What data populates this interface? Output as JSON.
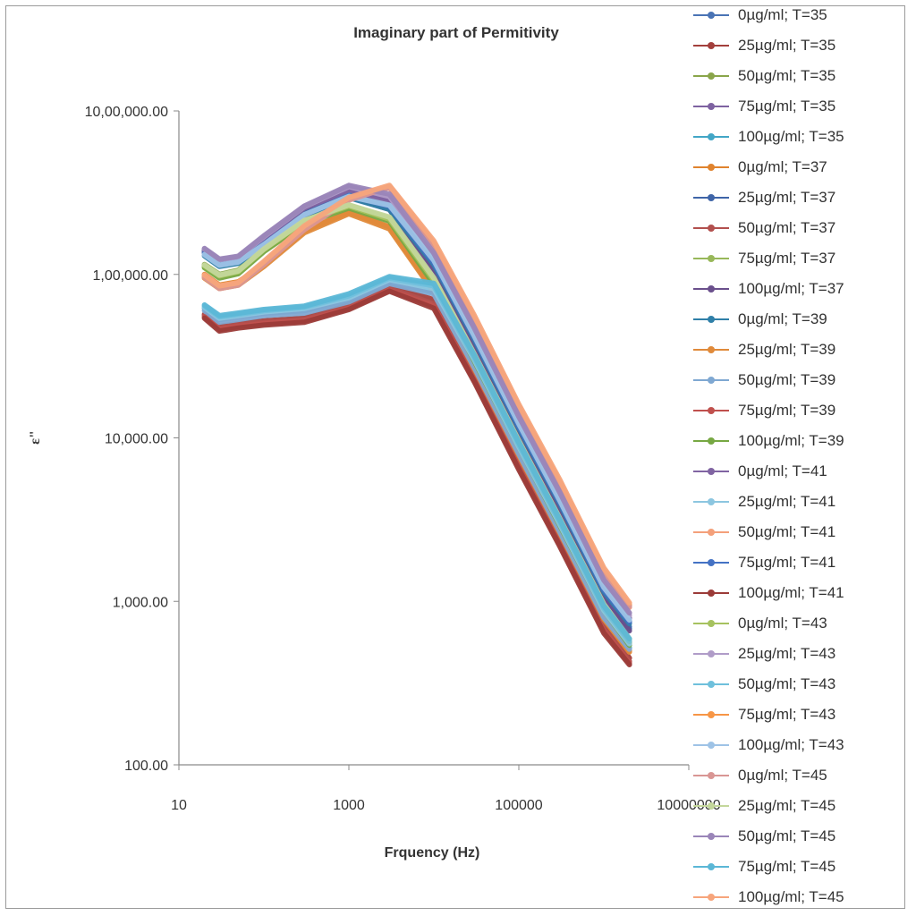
{
  "chart_data": {
    "type": "line",
    "title": "Imaginary part of Permitivity",
    "xlabel": "Frquency (Hz)",
    "ylabel": "ε\"",
    "x_scale": "log",
    "y_scale": "log",
    "xlim": [
      10,
      10000000
    ],
    "ylim": [
      100,
      1000000
    ],
    "x_ticks": [
      "10",
      "1000",
      "100000",
      "10000000"
    ],
    "y_ticks": [
      "100.00",
      "1,000.00",
      "10,000.00",
      "1,00,000.00",
      "10,00,000.00"
    ],
    "grid": false,
    "legend_position": "right",
    "x": [
      20,
      30,
      50,
      100,
      300,
      1000,
      3000,
      10000,
      30000,
      100000,
      300000,
      1000000,
      2000000
    ],
    "series": [
      {
        "name": "0µg/ml; T=35",
        "color": "#4a74b5",
        "values": [
          140000,
          120000,
          125000,
          160000,
          240000,
          310000,
          260000,
          110000,
          37000,
          11000,
          3700,
          1100,
          700
        ]
      },
      {
        "name": "25µg/ml; T=35",
        "color": "#a33f3c",
        "values": [
          57000,
          48000,
          50000,
          52000,
          54000,
          65000,
          85000,
          70000,
          25000,
          7200,
          2500,
          720,
          450
        ]
      },
      {
        "name": "50µg/ml; T=35",
        "color": "#8aa54a",
        "values": [
          115000,
          100000,
          106000,
          145000,
          215000,
          265000,
          220000,
          90000,
          31000,
          9200,
          3100,
          920,
          560
        ]
      },
      {
        "name": "75µg/ml; T=35",
        "color": "#7e62a1",
        "values": [
          140000,
          120000,
          125000,
          165000,
          250000,
          330000,
          280000,
          120000,
          41000,
          12000,
          4100,
          1200,
          760
        ]
      },
      {
        "name": "100µg/ml; T=35",
        "color": "#43a6c6",
        "values": [
          62000,
          53000,
          55000,
          58000,
          60000,
          70000,
          90000,
          78000,
          28000,
          8200,
          2800,
          820,
          520
        ]
      },
      {
        "name": "0µg/ml; T=37",
        "color": "#e0832e",
        "values": [
          100000,
          86000,
          90000,
          115000,
          185000,
          240000,
          195000,
          80000,
          27000,
          8000,
          2700,
          800,
          500
        ]
      },
      {
        "name": "25µg/ml; T=37",
        "color": "#3f65a8",
        "values": [
          138000,
          118000,
          123000,
          158000,
          235000,
          300000,
          255000,
          105000,
          36000,
          10500,
          3600,
          1050,
          680
        ]
      },
      {
        "name": "50µg/ml; T=37",
        "color": "#b2504e",
        "values": [
          56000,
          47000,
          49000,
          51000,
          53000,
          63000,
          82000,
          66000,
          23000,
          6800,
          2300,
          680,
          430
        ]
      },
      {
        "name": "75µg/ml; T=37",
        "color": "#98b85a",
        "values": [
          112000,
          97000,
          103000,
          140000,
          210000,
          260000,
          215000,
          88000,
          30000,
          9000,
          3000,
          900,
          550
        ]
      },
      {
        "name": "100µg/ml; T=37",
        "color": "#6a4f8c",
        "values": [
          136000,
          117000,
          121000,
          155000,
          232000,
          298000,
          250000,
          104000,
          35000,
          10400,
          3500,
          1040,
          660
        ]
      },
      {
        "name": "0µg/ml; T=39",
        "color": "#2f7fa8",
        "values": [
          130000,
          112000,
          117000,
          150000,
          230000,
          295000,
          250000,
          115000,
          40000,
          11500,
          4000,
          1150,
          730
        ]
      },
      {
        "name": "25µg/ml; T=39",
        "color": "#e08a3a",
        "values": [
          95000,
          82000,
          86000,
          112000,
          180000,
          235000,
          190000,
          78000,
          26500,
          7800,
          2650,
          780,
          490
        ]
      },
      {
        "name": "50µg/ml; T=39",
        "color": "#7fa8d2",
        "values": [
          60000,
          51000,
          53000,
          56000,
          58000,
          68000,
          88000,
          76000,
          27000,
          8000,
          2700,
          800,
          510
        ]
      },
      {
        "name": "75µg/ml; T=39",
        "color": "#c0504d",
        "values": [
          55000,
          46000,
          48000,
          50000,
          52000,
          62000,
          80000,
          64000,
          22500,
          6600,
          2250,
          660,
          420
        ]
      },
      {
        "name": "100µg/ml; T=39",
        "color": "#77a843",
        "values": [
          110000,
          95000,
          101000,
          138000,
          205000,
          255000,
          212000,
          87000,
          29500,
          8800,
          2950,
          880,
          540
        ]
      },
      {
        "name": "0µg/ml; T=41",
        "color": "#8064a2",
        "values": [
          142000,
          122000,
          127000,
          168000,
          255000,
          335000,
          290000,
          125000,
          43000,
          12500,
          4300,
          1250,
          790
        ]
      },
      {
        "name": "25µg/ml; T=41",
        "color": "#8cc6e0",
        "values": [
          63000,
          54000,
          56000,
          59000,
          62000,
          72000,
          93000,
          82000,
          30000,
          8800,
          3000,
          880,
          550
        ]
      },
      {
        "name": "50µg/ml; T=41",
        "color": "#f4a07a",
        "values": [
          98000,
          84000,
          88000,
          118000,
          195000,
          290000,
          340000,
          150000,
          52000,
          15000,
          5200,
          1500,
          920
        ]
      },
      {
        "name": "75µg/ml; T=41",
        "color": "#4472c4",
        "values": [
          135000,
          116000,
          120000,
          153000,
          232000,
          302000,
          262000,
          118000,
          41000,
          11800,
          4100,
          1180,
          750
        ]
      },
      {
        "name": "100µg/ml; T=41",
        "color": "#9b3b38",
        "values": [
          54000,
          45000,
          47000,
          49000,
          51000,
          61000,
          79000,
          62000,
          22000,
          6400,
          2200,
          640,
          410
        ]
      },
      {
        "name": "0µg/ml; T=43",
        "color": "#a6c25f",
        "values": [
          113000,
          98000,
          104000,
          142000,
          212000,
          262000,
          218000,
          92000,
          31500,
          9300,
          3150,
          930,
          570
        ]
      },
      {
        "name": "25µg/ml; T=43",
        "color": "#b09cc8",
        "values": [
          143000,
          123000,
          128000,
          170000,
          260000,
          345000,
          300000,
          130000,
          45000,
          13000,
          4500,
          1300,
          820
        ]
      },
      {
        "name": "50µg/ml; T=43",
        "color": "#6fc0dc",
        "values": [
          64000,
          55000,
          57000,
          60000,
          63000,
          74000,
          95000,
          85000,
          31000,
          9100,
          3100,
          910,
          570
        ]
      },
      {
        "name": "75µg/ml; T=43",
        "color": "#f79646",
        "values": [
          97000,
          83000,
          87000,
          116000,
          192000,
          288000,
          345000,
          155000,
          54000,
          15500,
          5400,
          1550,
          950
        ]
      },
      {
        "name": "100µg/ml; T=43",
        "color": "#9ec3e6",
        "values": [
          132000,
          114000,
          119000,
          152000,
          232000,
          300000,
          265000,
          122000,
          42000,
          12200,
          4200,
          1220,
          770
        ]
      },
      {
        "name": "0µg/ml; T=45",
        "color": "#d99694",
        "values": [
          96000,
          82000,
          86000,
          115000,
          188000,
          285000,
          342000,
          152000,
          53000,
          15200,
          5300,
          1520,
          930
        ]
      },
      {
        "name": "25µg/ml; T=45",
        "color": "#c4d79b",
        "values": [
          114000,
          99000,
          105000,
          143000,
          214000,
          266000,
          224000,
          95000,
          32500,
          9600,
          3250,
          960,
          590
        ]
      },
      {
        "name": "50µg/ml; T=45",
        "color": "#9a85b8",
        "values": [
          144000,
          124000,
          129000,
          172000,
          262000,
          350000,
          310000,
          135000,
          47000,
          13500,
          4700,
          1350,
          850
        ]
      },
      {
        "name": "75µg/ml; T=45",
        "color": "#5bb7d6",
        "values": [
          65000,
          56000,
          58000,
          61000,
          64000,
          76000,
          97000,
          88000,
          32000,
          9400,
          3200,
          940,
          590
        ]
      },
      {
        "name": "100µg/ml; T=45",
        "color": "#f7a57c",
        "values": [
          99000,
          85000,
          89000,
          120000,
          198000,
          295000,
          350000,
          160000,
          56000,
          16000,
          5600,
          1600,
          980
        ]
      }
    ]
  }
}
